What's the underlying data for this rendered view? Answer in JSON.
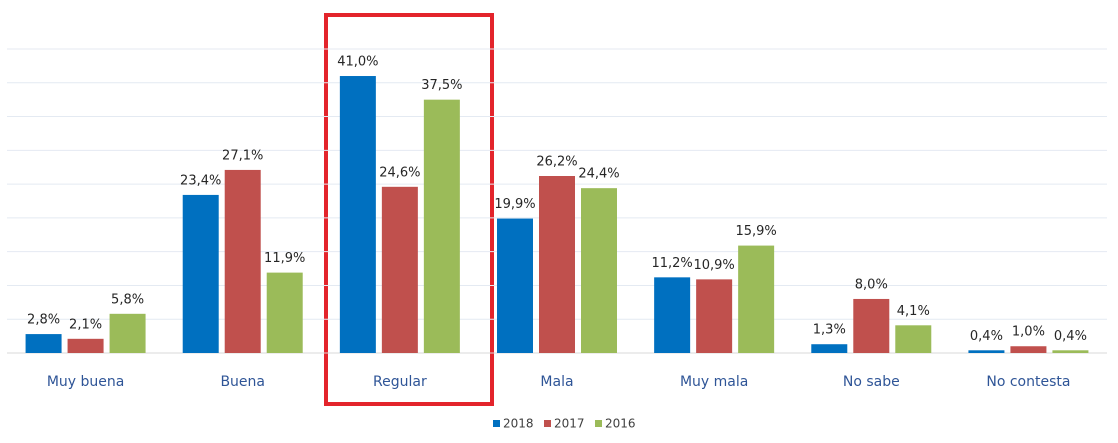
{
  "chart_data": {
    "type": "bar",
    "categories": [
      "Muy buena",
      "Buena",
      "Regular",
      "Mala",
      "Muy mala",
      "No sabe",
      "No contesta"
    ],
    "series": [
      {
        "name": "2018",
        "color": "#0070c0",
        "values": [
          2.8,
          23.4,
          41.0,
          19.9,
          11.2,
          1.3,
          0.4
        ],
        "value_labels": [
          "2,8%",
          "23,4%",
          "41,0%",
          "19,9%",
          "11,2%",
          "1,3%",
          "0,4%"
        ]
      },
      {
        "name": "2017",
        "color": "#c0504d",
        "values": [
          2.1,
          27.1,
          24.6,
          26.2,
          10.9,
          8.0,
          1.0
        ],
        "value_labels": [
          "2,1%",
          "27,1%",
          "24,6%",
          "26,2%",
          "10,9%",
          "8,0%",
          "1,0%"
        ]
      },
      {
        "name": "2016",
        "color": "#9bbb59",
        "values": [
          5.8,
          11.9,
          37.5,
          24.4,
          15.9,
          4.1,
          0.4
        ],
        "value_labels": [
          "5,8%",
          "11,9%",
          "37,5%",
          "24,4%",
          "15,9%",
          "4,1%",
          "0,4%"
        ]
      }
    ],
    "ylim": [
      0,
      45
    ],
    "yticks": [
      0,
      5,
      10,
      15,
      20,
      25,
      30,
      35,
      40,
      45
    ],
    "grid": true,
    "legend": "bottom"
  }
}
